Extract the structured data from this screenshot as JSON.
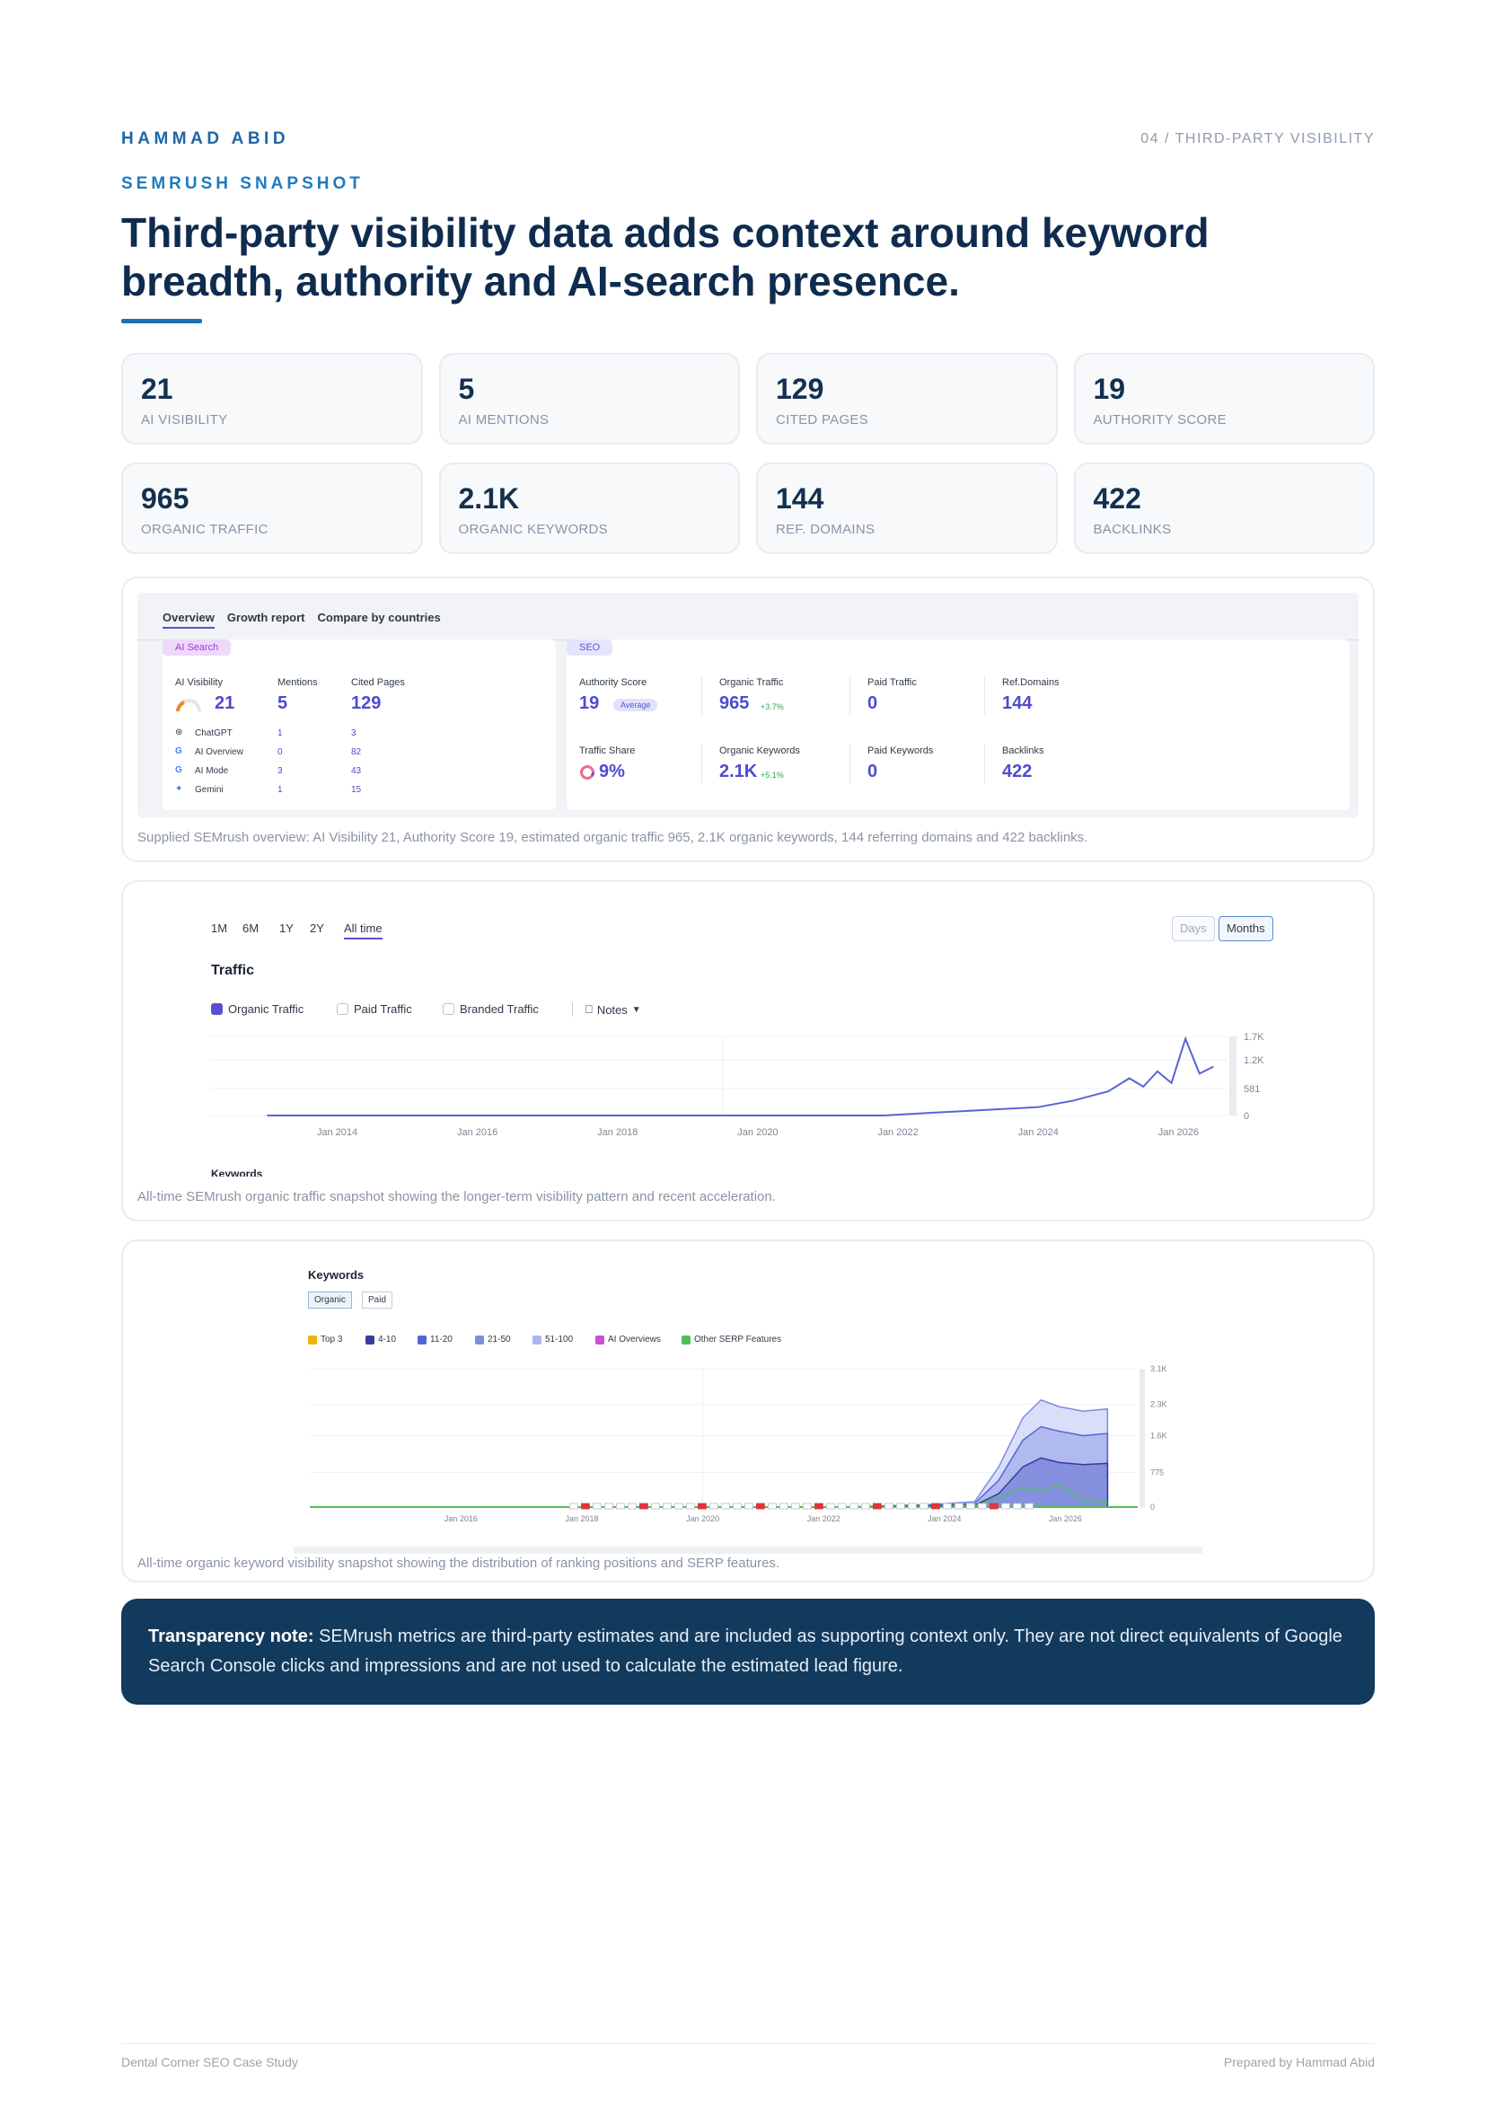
{
  "header": {
    "brand": "HAMMAD ABID",
    "section_ref": "04 / THIRD-PARTY VISIBILITY",
    "kicker": "SEMRUSH SNAPSHOT",
    "headline": "Third-party visibility data adds context around keyword breadth, authority and AI-search presence."
  },
  "stats": [
    {
      "value": "21",
      "label": "AI VISIBILITY"
    },
    {
      "value": "5",
      "label": "AI MENTIONS"
    },
    {
      "value": "129",
      "label": "CITED PAGES"
    },
    {
      "value": "19",
      "label": "AUTHORITY SCORE"
    },
    {
      "value": "965",
      "label": "ORGANIC TRAFFIC"
    },
    {
      "value": "2.1K",
      "label": "ORGANIC KEYWORDS"
    },
    {
      "value": "144",
      "label": "REF. DOMAINS"
    },
    {
      "value": "422",
      "label": "BACKLINKS"
    }
  ],
  "overview": {
    "tabs": [
      "Overview",
      "Growth report",
      "Compare by countries"
    ],
    "ai_pill": "AI Search",
    "seo_pill": "SEO",
    "ai_cols": [
      {
        "label": "AI Visibility",
        "value": "21"
      },
      {
        "label": "Mentions",
        "value": "5"
      },
      {
        "label": "Cited Pages",
        "value": "129"
      }
    ],
    "ai_rows": [
      {
        "name": "ChatGPT",
        "mentions": "1",
        "cited": "3"
      },
      {
        "name": "AI Overview",
        "mentions": "0",
        "cited": "82"
      },
      {
        "name": "AI Mode",
        "mentions": "3",
        "cited": "43"
      },
      {
        "name": "Gemini",
        "mentions": "1",
        "cited": "15"
      }
    ],
    "seo_metrics": [
      {
        "label": "Authority Score",
        "value": "19",
        "extra": "Average"
      },
      {
        "label": "Organic Traffic",
        "value": "965",
        "extra": "+3.7%"
      },
      {
        "label": "Paid Traffic",
        "value": "0",
        "extra": ""
      },
      {
        "label": "Ref.Domains",
        "value": "144",
        "extra": ""
      },
      {
        "label": "Traffic Share",
        "value": "9%",
        "extra": ""
      },
      {
        "label": "Organic Keywords",
        "value": "2.1K",
        "extra": "+5.1%"
      },
      {
        "label": "Paid Keywords",
        "value": "0",
        "extra": ""
      },
      {
        "label": "Backlinks",
        "value": "422",
        "extra": ""
      }
    ],
    "caption": "Supplied SEMrush overview: AI Visibility 21, Authority Score 19, estimated organic traffic 965, 2.1K organic keywords, 144 referring domains and 422 backlinks."
  },
  "traffic_chart": {
    "ranges": [
      "1M",
      "6M",
      "1Y",
      "2Y",
      "All time"
    ],
    "active_range": "All time",
    "toggle": [
      "Days",
      "Months"
    ],
    "title": "Traffic",
    "legend": [
      "Organic Traffic",
      "Paid Traffic",
      "Branded Traffic"
    ],
    "notes_label": "Notes",
    "cut_label": "Keywords",
    "caption": "All-time SEMrush organic traffic snapshot showing the longer-term visibility pattern and recent acceleration."
  },
  "keywords_chart": {
    "title": "Keywords",
    "segments": [
      "Organic",
      "Paid"
    ],
    "legend": [
      {
        "label": "Top 3",
        "color": "#f0b400"
      },
      {
        "label": "4-10",
        "color": "#3a3a9e"
      },
      {
        "label": "11-20",
        "color": "#5663d1"
      },
      {
        "label": "21-50",
        "color": "#7e8ce0"
      },
      {
        "label": "51-100",
        "color": "#aab6ef"
      },
      {
        "label": "AI Overviews",
        "color": "#c94fd6"
      },
      {
        "label": "Other SERP Features",
        "color": "#4cbf5a"
      }
    ],
    "caption": "All-time organic keyword visibility snapshot showing the distribution of ranking positions and SERP features."
  },
  "chart_data": [
    {
      "type": "line",
      "title": "Traffic",
      "x_ticks": [
        "Jan 2014",
        "Jan 2016",
        "Jan 2018",
        "Jan 2020",
        "Jan 2022",
        "Jan 2024",
        "Jan 2026"
      ],
      "y_ticks": [
        "1.7K",
        "1.2K",
        "581",
        "0"
      ],
      "ylim": [
        0,
        1700
      ],
      "series": [
        {
          "name": "Organic Traffic",
          "color": "#5b63d6",
          "x": [
            2013.0,
            2014.0,
            2016.0,
            2018.0,
            2020.0,
            2021.8,
            2022.5,
            2023.0,
            2023.5,
            2024.0,
            2024.5,
            2025.0,
            2025.3,
            2025.5,
            2025.7,
            2025.9,
            2026.1,
            2026.3,
            2026.5
          ],
          "y": [
            0,
            0,
            0,
            0,
            0,
            0,
            60,
            100,
            140,
            180,
            320,
            520,
            800,
            620,
            950,
            700,
            1650,
            900,
            1050
          ]
        }
      ]
    },
    {
      "type": "area",
      "title": "Keywords",
      "x_ticks": [
        "Jan 2016",
        "Jan 2018",
        "Jan 2020",
        "Jan 2022",
        "Jan 2024",
        "Jan 2026"
      ],
      "y_ticks": [
        "3.1K",
        "2.3K",
        "1.6K",
        "775",
        "0"
      ],
      "ylim": [
        0,
        3100
      ],
      "series": [
        {
          "name": "51-100",
          "x": [
            2014,
            2016,
            2018,
            2020,
            2022,
            2023.5,
            2024.2,
            2024.6,
            2025.0,
            2025.3,
            2025.6,
            2026.0,
            2026.4
          ],
          "y": [
            0,
            0,
            0,
            0,
            0,
            60,
            120,
            900,
            2000,
            2400,
            2250,
            2150,
            2200
          ]
        },
        {
          "name": "21-50",
          "x": [
            2014,
            2016,
            2018,
            2020,
            2022,
            2023.5,
            2024.2,
            2024.6,
            2025.0,
            2025.3,
            2025.6,
            2026.0,
            2026.4
          ],
          "y": [
            0,
            0,
            0,
            0,
            0,
            40,
            80,
            600,
            1500,
            1800,
            1700,
            1600,
            1650
          ]
        },
        {
          "name": "11-20",
          "x": [
            2014,
            2016,
            2018,
            2020,
            2022,
            2023.5,
            2024.2,
            2024.6,
            2025.0,
            2025.3,
            2025.6,
            2026.0,
            2026.4
          ],
          "y": [
            0,
            0,
            0,
            0,
            0,
            20,
            40,
            300,
            900,
            1100,
            1000,
            950,
            980
          ]
        },
        {
          "name": "Other SERP Features",
          "x": [
            2014,
            2016,
            2018,
            2020,
            2022,
            2023.5,
            2024.2,
            2024.6,
            2025.0,
            2025.3,
            2025.6,
            2026.0,
            2026.4
          ],
          "y": [
            0,
            0,
            0,
            0,
            0,
            0,
            30,
            200,
            450,
            350,
            500,
            150,
            100
          ]
        }
      ]
    }
  ],
  "note": {
    "bold": "Transparency note:",
    "text": " SEMrush metrics are third-party estimates and are included as supporting context only. They are not direct equivalents of Google Search Console clicks and impressions and are not used to calculate the estimated lead figure."
  },
  "footer": {
    "left": "Dental Corner SEO Case Study",
    "right": "Prepared by Hammad Abid"
  }
}
